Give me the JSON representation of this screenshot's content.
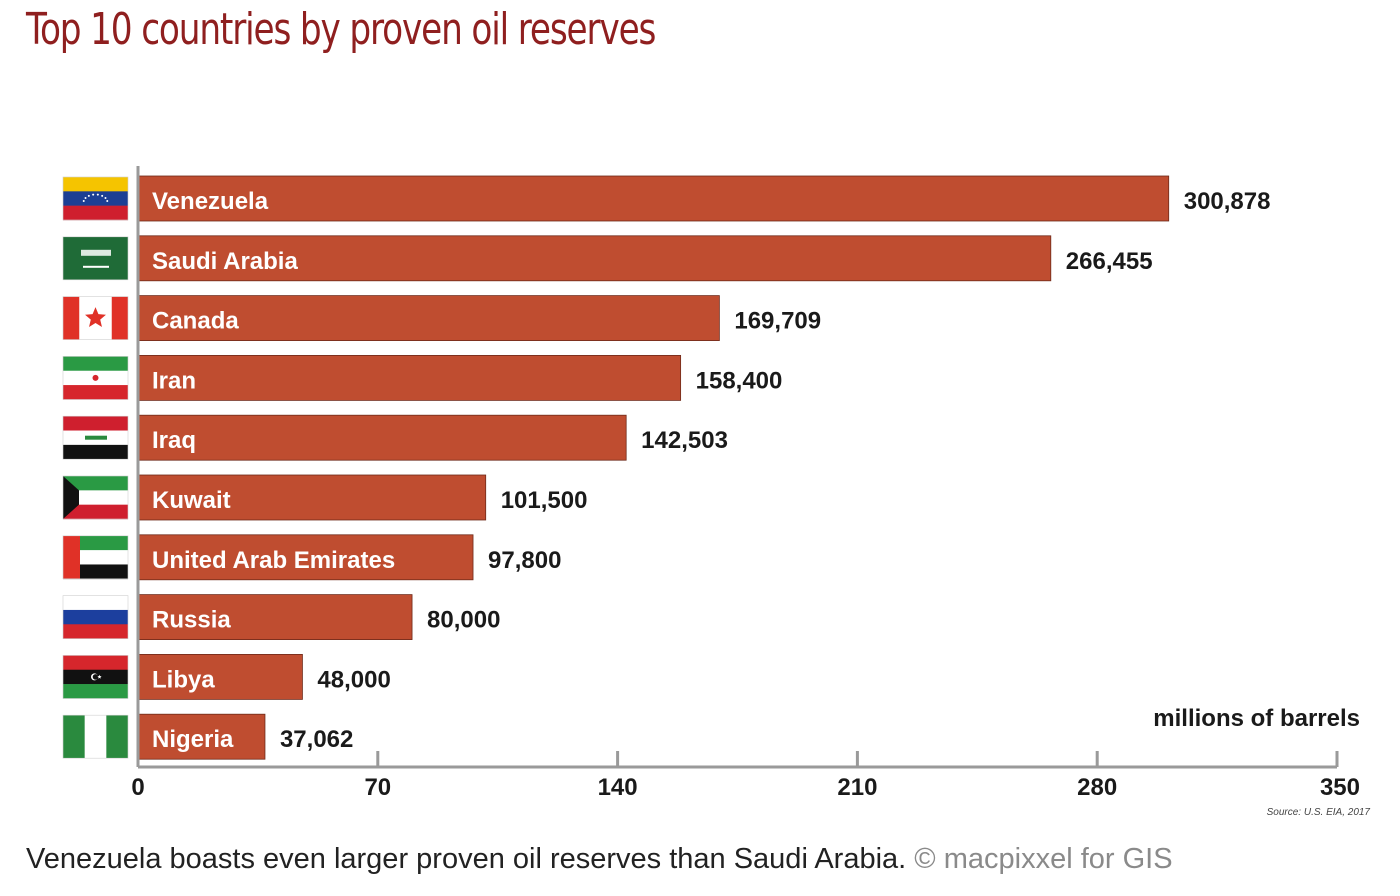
{
  "title": "Top 10 countries by proven oil reserves",
  "caption": {
    "text": "Venezuela boasts even larger proven oil reserves than Saudi Arabia.",
    "credit": "© macpixxel for GIS"
  },
  "chart_data": {
    "type": "bar",
    "orientation": "horizontal",
    "title": "Top 10 countries by proven oil reserves",
    "categories": [
      "Venezuela",
      "Saudi Arabia",
      "Canada",
      "Iran",
      "Iraq",
      "Kuwait",
      "United Arab Emirates",
      "Russia",
      "Libya",
      "Nigeria"
    ],
    "values": [
      300878,
      266455,
      169709,
      158400,
      142503,
      101500,
      97800,
      80000,
      48000,
      37062
    ],
    "value_labels": [
      "300,878",
      "266,455",
      "169,709",
      "158,400",
      "142,503",
      "101,500",
      "97,800",
      "80,000",
      "48,000",
      "37,062"
    ],
    "xlabel": "millions of barrels",
    "xlim": [
      0,
      350
    ],
    "xticks": [
      0,
      70,
      140,
      210,
      280,
      350
    ],
    "value_scale": 1000,
    "source": "Source: U.S. EIA, 2017",
    "bar_color": "#bf4d30",
    "flags": [
      "venezuela-flag",
      "saudi-arabia-flag",
      "canada-flag",
      "iran-flag",
      "iraq-flag",
      "kuwait-flag",
      "uae-flag",
      "russia-flag",
      "libya-flag",
      "nigeria-flag"
    ]
  }
}
